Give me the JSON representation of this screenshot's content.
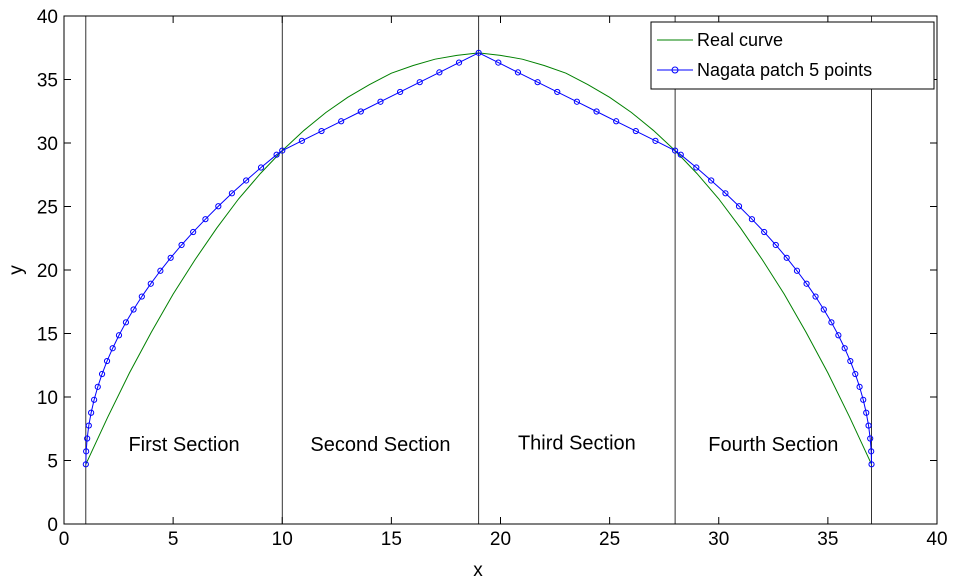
{
  "chart_data": {
    "type": "line",
    "xlabel": "x",
    "ylabel": "y",
    "xlim": [
      0,
      40
    ],
    "ylim": [
      0,
      40
    ],
    "xticks": [
      "0",
      "5",
      "10",
      "15",
      "20",
      "25",
      "30",
      "35",
      "40"
    ],
    "yticks": [
      "0",
      "5",
      "10",
      "15",
      "20",
      "25",
      "30",
      "35",
      "40"
    ],
    "grid": false,
    "legend_position": "top-right",
    "section_boundaries_x": [
      1,
      10,
      19,
      28,
      37
    ],
    "sections": [
      {
        "label": "First Section",
        "x": 5.5,
        "y": 6.3
      },
      {
        "label": "Second Section",
        "x": 14.5,
        "y": 6.3
      },
      {
        "label": "Third Section",
        "x": 23.5,
        "y": 6.4
      },
      {
        "label": "Fourth Section",
        "x": 32.5,
        "y": 6.3
      }
    ],
    "series": [
      {
        "name": "Real curve",
        "color": "#008000",
        "marker": "none",
        "x": [
          1,
          2,
          3,
          4,
          5,
          6,
          7,
          8,
          9,
          10,
          11,
          12,
          13,
          14,
          15,
          16,
          17,
          18,
          19,
          20,
          21,
          22,
          23,
          24,
          25,
          26,
          27,
          28,
          29,
          30,
          31,
          32,
          33,
          34,
          35,
          36,
          37
        ],
        "y": [
          4.7,
          8.4,
          11.9,
          15.1,
          18.1,
          20.8,
          23.3,
          25.6,
          27.6,
          29.4,
          31.0,
          32.4,
          33.6,
          34.6,
          35.5,
          36.1,
          36.6,
          36.9,
          37.1,
          36.9,
          36.6,
          36.1,
          35.5,
          34.6,
          33.6,
          32.4,
          31.0,
          29.4,
          27.6,
          25.6,
          23.3,
          20.8,
          18.1,
          15.1,
          11.9,
          8.4,
          4.7
        ]
      },
      {
        "name": "Nagata patch 5 points",
        "color": "#0000ff",
        "marker": "circle",
        "x": [
          1.0,
          1.015,
          1.061,
          1.136,
          1.243,
          1.38,
          1.547,
          1.744,
          1.972,
          2.23,
          2.519,
          2.838,
          3.187,
          3.566,
          3.976,
          4.416,
          4.887,
          5.387,
          5.918,
          6.48,
          7.071,
          7.693,
          8.346,
          9.028,
          9.741,
          10.0,
          10.9,
          11.8,
          12.7,
          13.6,
          14.5,
          15.4,
          16.3,
          17.2,
          18.1,
          19.0,
          19.9,
          20.8,
          21.7,
          22.6,
          23.5,
          24.4,
          25.3,
          26.2,
          27.1,
          28.0,
          28.259,
          28.972,
          29.654,
          30.307,
          30.929,
          31.52,
          32.082,
          32.613,
          33.113,
          33.584,
          34.024,
          34.434,
          34.813,
          35.162,
          35.481,
          35.77,
          36.028,
          36.256,
          36.453,
          36.62,
          36.757,
          36.864,
          36.939,
          36.985,
          37.0
        ],
        "y": [
          4.7,
          5.72,
          6.73,
          7.75,
          8.76,
          9.78,
          10.8,
          11.81,
          12.83,
          13.84,
          14.86,
          15.88,
          16.89,
          17.91,
          18.92,
          19.94,
          20.96,
          21.97,
          22.99,
          24.0,
          25.02,
          26.04,
          27.05,
          28.07,
          29.08,
          29.4,
          30.17,
          30.94,
          31.71,
          32.48,
          33.25,
          34.02,
          34.79,
          35.56,
          36.33,
          37.1,
          36.33,
          35.56,
          34.79,
          34.02,
          33.25,
          32.48,
          31.71,
          30.94,
          30.17,
          29.4,
          29.08,
          28.07,
          27.05,
          26.04,
          25.02,
          24.0,
          22.99,
          21.97,
          20.96,
          19.94,
          18.92,
          17.91,
          16.89,
          15.88,
          14.86,
          13.84,
          12.83,
          11.81,
          10.8,
          9.78,
          8.76,
          7.75,
          6.73,
          5.72,
          4.7
        ]
      }
    ]
  }
}
